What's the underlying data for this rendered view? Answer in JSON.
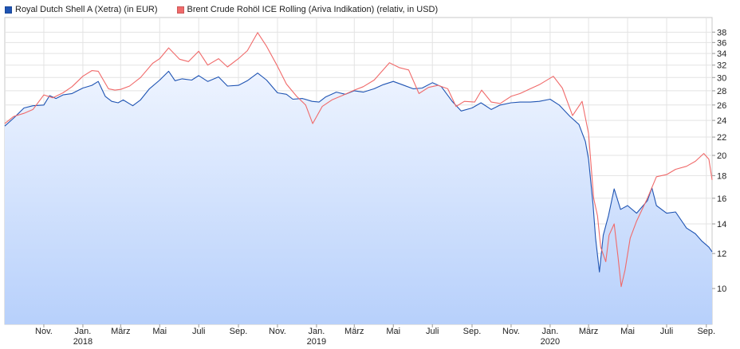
{
  "chart_data": {
    "type": "line",
    "legend": [
      {
        "name": "Royal Dutch Shell A (Xetra) (in EUR)",
        "color": "#1f54b3"
      },
      {
        "name": "Brent Crude Rohöl ICE Rolling (Ariva Indikation) (relativ, in USD)",
        "color": "#f06a6a"
      }
    ],
    "y_axis": {
      "scale": "log",
      "ticks": [
        "38",
        "36",
        "34",
        "32",
        "30",
        "28",
        "26",
        "24",
        "22",
        "20",
        "18",
        "16",
        "14",
        "12",
        "10"
      ],
      "position": "right",
      "ylim": [
        8.3,
        41
      ]
    },
    "x_axis": {
      "start": "2017-09-01",
      "end": "2020-09-10",
      "ticks": [
        {
          "label": "Nov.",
          "date": "2017-11-01"
        },
        {
          "label": "Jan.",
          "year": "2018",
          "date": "2018-01-01"
        },
        {
          "label": "März",
          "date": "2018-03-01"
        },
        {
          "label": "Mai",
          "date": "2018-05-01"
        },
        {
          "label": "Juli",
          "date": "2018-07-01"
        },
        {
          "label": "Sep.",
          "date": "2018-09-01"
        },
        {
          "label": "Nov.",
          "date": "2018-11-01"
        },
        {
          "label": "Jan.",
          "year": "2019",
          "date": "2019-01-01"
        },
        {
          "label": "März",
          "date": "2019-03-01"
        },
        {
          "label": "Mai",
          "date": "2019-05-01"
        },
        {
          "label": "Juli",
          "date": "2019-07-01"
        },
        {
          "label": "Sep.",
          "date": "2019-09-01"
        },
        {
          "label": "Nov.",
          "date": "2019-11-01"
        },
        {
          "label": "Jan.",
          "year": "2020",
          "date": "2020-01-01"
        },
        {
          "label": "März",
          "date": "2020-03-01"
        },
        {
          "label": "Mai",
          "date": "2020-05-01"
        },
        {
          "label": "Juli",
          "date": "2020-07-01"
        },
        {
          "label": "Sep.",
          "date": "2020-09-01"
        }
      ]
    },
    "grid": true,
    "series": [
      {
        "name": "Royal Dutch Shell A (Xetra) (in EUR)",
        "color": "#1f54b3",
        "fill": true,
        "points": [
          [
            "2017-09-01",
            23.3
          ],
          [
            "2017-09-15",
            24.3
          ],
          [
            "2017-10-01",
            25.6
          ],
          [
            "2017-10-15",
            25.9
          ],
          [
            "2017-11-01",
            26.0
          ],
          [
            "2017-11-10",
            27.3
          ],
          [
            "2017-11-20",
            26.9
          ],
          [
            "2017-12-01",
            27.4
          ],
          [
            "2017-12-15",
            27.6
          ],
          [
            "2018-01-01",
            28.4
          ],
          [
            "2018-01-15",
            28.8
          ],
          [
            "2018-01-25",
            29.4
          ],
          [
            "2018-02-05",
            27.2
          ],
          [
            "2018-02-15",
            26.5
          ],
          [
            "2018-02-25",
            26.3
          ],
          [
            "2018-03-05",
            26.7
          ],
          [
            "2018-03-20",
            25.9
          ],
          [
            "2018-04-01",
            26.7
          ],
          [
            "2018-04-15",
            28.3
          ],
          [
            "2018-05-01",
            29.6
          ],
          [
            "2018-05-15",
            31.0
          ],
          [
            "2018-05-25",
            29.5
          ],
          [
            "2018-06-05",
            29.8
          ],
          [
            "2018-06-20",
            29.6
          ],
          [
            "2018-07-01",
            30.3
          ],
          [
            "2018-07-15",
            29.4
          ],
          [
            "2018-08-01",
            30.1
          ],
          [
            "2018-08-15",
            28.7
          ],
          [
            "2018-09-01",
            28.8
          ],
          [
            "2018-09-15",
            29.5
          ],
          [
            "2018-10-01",
            30.7
          ],
          [
            "2018-10-15",
            29.6
          ],
          [
            "2018-11-01",
            27.7
          ],
          [
            "2018-11-15",
            27.5
          ],
          [
            "2018-11-25",
            26.8
          ],
          [
            "2018-12-10",
            26.9
          ],
          [
            "2018-12-25",
            26.5
          ],
          [
            "2019-01-05",
            26.4
          ],
          [
            "2019-01-15",
            27.1
          ],
          [
            "2019-02-01",
            27.8
          ],
          [
            "2019-02-15",
            27.5
          ],
          [
            "2019-03-01",
            28.0
          ],
          [
            "2019-03-15",
            27.8
          ],
          [
            "2019-04-01",
            28.3
          ],
          [
            "2019-04-15",
            28.9
          ],
          [
            "2019-05-01",
            29.4
          ],
          [
            "2019-05-15",
            28.9
          ],
          [
            "2019-06-01",
            28.3
          ],
          [
            "2019-06-15",
            28.4
          ],
          [
            "2019-07-01",
            29.2
          ],
          [
            "2019-07-15",
            28.6
          ],
          [
            "2019-08-01",
            26.5
          ],
          [
            "2019-08-15",
            25.2
          ],
          [
            "2019-09-01",
            25.6
          ],
          [
            "2019-09-15",
            26.3
          ],
          [
            "2019-10-01",
            25.4
          ],
          [
            "2019-10-15",
            26.0
          ],
          [
            "2019-11-01",
            26.3
          ],
          [
            "2019-11-15",
            26.4
          ],
          [
            "2019-12-01",
            26.4
          ],
          [
            "2019-12-15",
            26.5
          ],
          [
            "2020-01-01",
            26.8
          ],
          [
            "2020-01-15",
            26.0
          ],
          [
            "2020-02-01",
            24.5
          ],
          [
            "2020-02-15",
            23.5
          ],
          [
            "2020-02-25",
            21.5
          ],
          [
            "2020-03-01",
            19.6
          ],
          [
            "2020-03-08",
            15.5
          ],
          [
            "2020-03-12",
            13.0
          ],
          [
            "2020-03-18",
            10.9
          ],
          [
            "2020-03-24",
            13.2
          ],
          [
            "2020-04-01",
            14.6
          ],
          [
            "2020-04-10",
            16.8
          ],
          [
            "2020-04-20",
            15.1
          ],
          [
            "2020-05-01",
            15.4
          ],
          [
            "2020-05-15",
            14.8
          ],
          [
            "2020-06-01",
            15.8
          ],
          [
            "2020-06-08",
            16.9
          ],
          [
            "2020-06-15",
            15.4
          ],
          [
            "2020-07-01",
            14.8
          ],
          [
            "2020-07-15",
            14.9
          ],
          [
            "2020-08-01",
            13.7
          ],
          [
            "2020-08-15",
            13.3
          ],
          [
            "2020-08-25",
            12.8
          ],
          [
            "2020-09-05",
            12.4
          ],
          [
            "2020-09-10",
            12.1
          ]
        ]
      },
      {
        "name": "Brent Crude Rohöl ICE Rolling (Ariva Indikation) (relativ, in USD)",
        "color": "#f06a6a",
        "fill": false,
        "points": [
          [
            "2017-09-01",
            23.6
          ],
          [
            "2017-09-15",
            24.5
          ],
          [
            "2017-10-01",
            24.9
          ],
          [
            "2017-10-15",
            25.4
          ],
          [
            "2017-11-01",
            27.4
          ],
          [
            "2017-11-15",
            27.0
          ],
          [
            "2017-12-01",
            27.7
          ],
          [
            "2017-12-15",
            28.6
          ],
          [
            "2018-01-01",
            30.2
          ],
          [
            "2018-01-15",
            31.1
          ],
          [
            "2018-01-25",
            31.0
          ],
          [
            "2018-02-10",
            28.3
          ],
          [
            "2018-02-20",
            28.1
          ],
          [
            "2018-03-01",
            28.2
          ],
          [
            "2018-03-15",
            28.7
          ],
          [
            "2018-04-01",
            30.0
          ],
          [
            "2018-04-20",
            32.3
          ],
          [
            "2018-05-01",
            33.1
          ],
          [
            "2018-05-15",
            35.0
          ],
          [
            "2018-06-01",
            33.0
          ],
          [
            "2018-06-15",
            32.6
          ],
          [
            "2018-07-01",
            34.4
          ],
          [
            "2018-07-15",
            32.0
          ],
          [
            "2018-08-01",
            33.1
          ],
          [
            "2018-08-15",
            31.7
          ],
          [
            "2018-09-01",
            33.1
          ],
          [
            "2018-09-15",
            34.5
          ],
          [
            "2018-10-01",
            37.9
          ],
          [
            "2018-10-15",
            35.3
          ],
          [
            "2018-11-01",
            31.8
          ],
          [
            "2018-11-15",
            29.0
          ],
          [
            "2018-12-01",
            27.2
          ],
          [
            "2018-12-15",
            26.0
          ],
          [
            "2018-12-26",
            23.6
          ],
          [
            "2019-01-10",
            25.8
          ],
          [
            "2019-01-25",
            26.7
          ],
          [
            "2019-02-10",
            27.3
          ],
          [
            "2019-03-01",
            28.1
          ],
          [
            "2019-03-15",
            28.6
          ],
          [
            "2019-04-01",
            29.6
          ],
          [
            "2019-04-25",
            32.4
          ],
          [
            "2019-05-10",
            31.6
          ],
          [
            "2019-05-25",
            31.2
          ],
          [
            "2019-06-10",
            27.6
          ],
          [
            "2019-06-25",
            28.5
          ],
          [
            "2019-07-10",
            28.8
          ],
          [
            "2019-07-25",
            28.3
          ],
          [
            "2019-08-07",
            25.8
          ],
          [
            "2019-08-20",
            26.5
          ],
          [
            "2019-09-05",
            26.4
          ],
          [
            "2019-09-16",
            28.1
          ],
          [
            "2019-10-01",
            26.4
          ],
          [
            "2019-10-15",
            26.2
          ],
          [
            "2019-11-01",
            27.2
          ],
          [
            "2019-11-15",
            27.6
          ],
          [
            "2019-12-01",
            28.3
          ],
          [
            "2019-12-15",
            28.9
          ],
          [
            "2020-01-06",
            30.2
          ],
          [
            "2020-01-20",
            28.4
          ],
          [
            "2020-02-05",
            24.6
          ],
          [
            "2020-02-20",
            26.5
          ],
          [
            "2020-03-01",
            22.4
          ],
          [
            "2020-03-09",
            16.0
          ],
          [
            "2020-03-15",
            14.6
          ],
          [
            "2020-03-20",
            12.4
          ],
          [
            "2020-03-28",
            11.5
          ],
          [
            "2020-04-02",
            13.2
          ],
          [
            "2020-04-10",
            14.0
          ],
          [
            "2020-04-16",
            11.8
          ],
          [
            "2020-04-21",
            10.1
          ],
          [
            "2020-04-27",
            11.0
          ],
          [
            "2020-05-05",
            13.0
          ],
          [
            "2020-05-15",
            14.2
          ],
          [
            "2020-06-01",
            16.0
          ],
          [
            "2020-06-15",
            17.9
          ],
          [
            "2020-07-01",
            18.1
          ],
          [
            "2020-07-15",
            18.6
          ],
          [
            "2020-08-01",
            18.9
          ],
          [
            "2020-08-15",
            19.4
          ],
          [
            "2020-08-28",
            20.2
          ],
          [
            "2020-09-05",
            19.6
          ],
          [
            "2020-09-10",
            17.6
          ]
        ]
      }
    ]
  }
}
